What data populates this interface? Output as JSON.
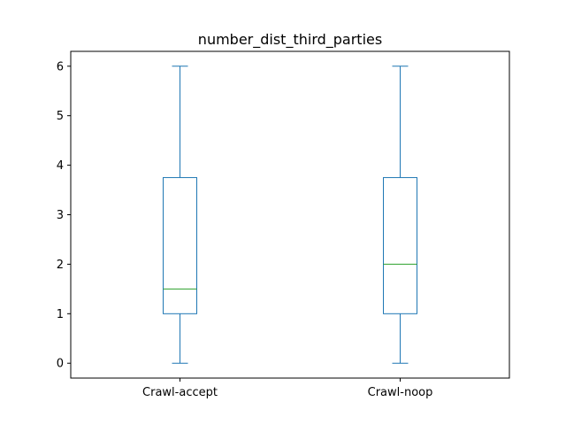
{
  "chart_data": {
    "type": "box",
    "title": "number_dist_third_parties",
    "xlabel": "",
    "ylabel": "",
    "categories": [
      "Crawl-accept",
      "Crawl-noop"
    ],
    "boxes": [
      {
        "name": "Crawl-accept",
        "whisker_low": 0,
        "q1": 1,
        "median": 1.5,
        "q3": 3.75,
        "whisker_high": 6
      },
      {
        "name": "Crawl-noop",
        "whisker_low": 0,
        "q1": 1,
        "median": 2,
        "q3": 3.75,
        "whisker_high": 6
      }
    ],
    "ylim": [
      -0.3,
      6.3
    ],
    "yticks": [
      0,
      1,
      2,
      3,
      4,
      5,
      6
    ],
    "grid": false,
    "colors": {
      "box": "#1f77b4",
      "median": "#2ca02c",
      "axis": "#000000"
    }
  }
}
